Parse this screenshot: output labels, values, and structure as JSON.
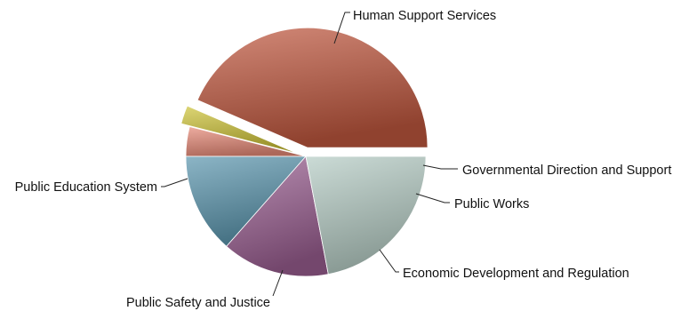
{
  "chart_data": {
    "type": "pie",
    "title": "",
    "slices": [
      {
        "label": "Human Support Services",
        "value": 43.5,
        "color": "#c0583f",
        "exploded": true
      },
      {
        "label": "Governmental Direction and Support",
        "value": 2.5,
        "color": "#cfc43a",
        "exploded": true
      },
      {
        "label": "Public Works",
        "value": 4.0,
        "color": "#e68a78",
        "exploded": false
      },
      {
        "label": "Economic Development and Regulation",
        "value": 13.5,
        "color": "#5b95ad",
        "exploded": false
      },
      {
        "label": "Public Safety and Justice",
        "value": 14.5,
        "color": "#9a5f91",
        "exploded": false
      },
      {
        "label": "Public Education System",
        "value": 22.0,
        "color": "#b5ccc4",
        "exploded": false
      }
    ]
  }
}
